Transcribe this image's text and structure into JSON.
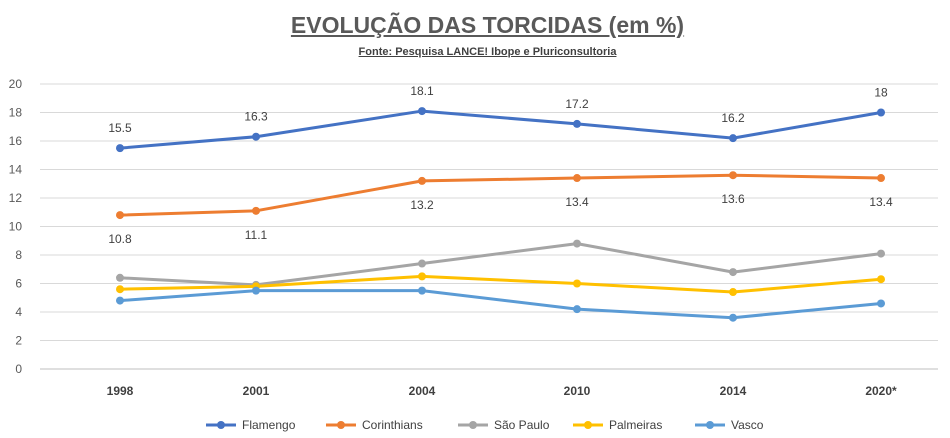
{
  "chart_data": {
    "type": "line",
    "title": "EVOLUÇÃO DAS TORCIDAS (em %)",
    "subtitle": "Fonte: Pesquisa LANCE! Ibope e Pluriconsultoria",
    "xlabel": "",
    "ylabel": "",
    "categories": [
      "1998",
      "2001",
      "2004",
      "2010",
      "2014",
      "2020*"
    ],
    "ylim": [
      0,
      20
    ],
    "yticks": [
      0,
      2,
      4,
      6,
      8,
      10,
      12,
      14,
      16,
      18,
      20
    ],
    "grid": true,
    "legend": "bottom",
    "series": [
      {
        "name": "Flamengo",
        "color": "#4472C4",
        "values": [
          15.5,
          16.3,
          18.1,
          17.2,
          16.2,
          18
        ],
        "labels": [
          "15.5",
          "16.3",
          "18.1",
          "17.2",
          "16.2",
          "18"
        ],
        "label_position": "above"
      },
      {
        "name": "Corinthians",
        "color": "#ED7D31",
        "values": [
          10.8,
          11.1,
          13.2,
          13.4,
          13.6,
          13.4
        ],
        "labels": [
          "10.8",
          "11.1",
          "13.2",
          "13.4",
          "13.6",
          "13.4"
        ],
        "label_position": "below"
      },
      {
        "name": "São Paulo",
        "color": "#A5A5A5",
        "values": [
          6.4,
          5.9,
          7.4,
          8.8,
          6.8,
          8.1
        ]
      },
      {
        "name": "Palmeiras",
        "color": "#FFC000",
        "values": [
          5.6,
          5.8,
          6.5,
          6.0,
          5.4,
          6.3
        ]
      },
      {
        "name": "Vasco",
        "color": "#5B9BD5",
        "values": [
          4.8,
          5.5,
          5.5,
          4.2,
          3.6,
          4.6
        ]
      }
    ]
  }
}
